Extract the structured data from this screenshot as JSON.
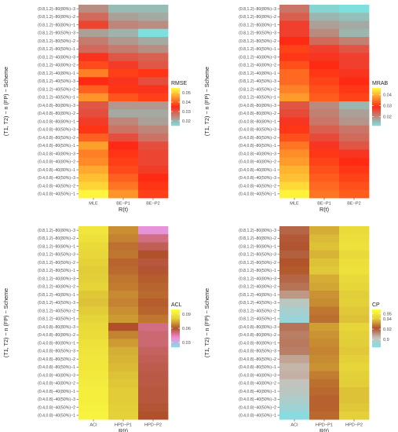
{
  "rows": [
    "(0.8,1.2)−80(80%)−3",
    "(0.8,1.2)−80(80%)−2",
    "(0.8,1.2)−80(80%)−1",
    "(0.8,1.2)−80(50%)−3",
    "(0.8,1.2)−80(50%)−2",
    "(0.8,1.2)−80(50%)−1",
    "(0.8,1.2)−40(80%)−3",
    "(0.8,1.2)−40(80%)−2",
    "(0.8,1.2)−40(80%)−1",
    "(0.8,1.2)−40(50%)−3",
    "(0.8,1.2)−40(50%)−2",
    "(0.8,1.2)−40(50%)−1",
    "(0.4,0.8)−80(80%)−3",
    "(0.4,0.8)−80(80%)−2",
    "(0.4,0.8)−80(80%)−1",
    "(0.4,0.8)−80(50%)−3",
    "(0.4,0.8)−80(50%)−2",
    "(0.4,0.8)−80(50%)−1",
    "(0.4,0.8)−40(80%)−3",
    "(0.4,0.8)−40(80%)−2",
    "(0.4,0.8)−40(80%)−1",
    "(0.4,0.8)−40(50%)−3",
    "(0.4,0.8)−40(50%)−2",
    "(0.4,0.8)−40(50%)−1"
  ],
  "chart_data": [
    {
      "type": "heatmap",
      "xlabel": "R(t)",
      "ylabel": "(T1, T2) − n (FP) − Scheme",
      "categories": [
        "MLE",
        "BE−P1",
        "BE−P2"
      ],
      "legend_title": "RMSE",
      "legend_ticks": [
        0.05,
        0.04,
        0.03,
        0.02
      ],
      "scale": {
        "min": 0.015,
        "max": 0.055,
        "colors": [
          "#7de0de",
          "#ff2a14",
          "#ffff40"
        ]
      },
      "values": [
        [
          0.024,
          0.019,
          0.019
        ],
        [
          0.028,
          0.022,
          0.021
        ],
        [
          0.032,
          0.025,
          0.024
        ],
        [
          0.022,
          0.02,
          0.015
        ],
        [
          0.026,
          0.023,
          0.021
        ],
        [
          0.028,
          0.026,
          0.024
        ],
        [
          0.034,
          0.03,
          0.029
        ],
        [
          0.038,
          0.033,
          0.03
        ],
        [
          0.043,
          0.037,
          0.036
        ],
        [
          0.035,
          0.034,
          0.031
        ],
        [
          0.04,
          0.036,
          0.034
        ],
        [
          0.045,
          0.039,
          0.037
        ],
        [
          0.03,
          0.023,
          0.023
        ],
        [
          0.031,
          0.021,
          0.021
        ],
        [
          0.033,
          0.025,
          0.022
        ],
        [
          0.036,
          0.027,
          0.025
        ],
        [
          0.04,
          0.031,
          0.027
        ],
        [
          0.046,
          0.035,
          0.031
        ],
        [
          0.043,
          0.036,
          0.032
        ],
        [
          0.044,
          0.037,
          0.032
        ],
        [
          0.047,
          0.038,
          0.033
        ],
        [
          0.049,
          0.04,
          0.035
        ],
        [
          0.051,
          0.042,
          0.036
        ],
        [
          0.054,
          0.045,
          0.037
        ]
      ]
    },
    {
      "type": "heatmap",
      "xlabel": "R(t)",
      "ylabel": "(T1, T2) − n (FP) − Scheme",
      "categories": [
        "MLE",
        "BE−P1",
        "BE−P2"
      ],
      "legend_title": "MRAB",
      "legend_ticks": [
        0.04,
        0.03,
        0.02
      ],
      "scale": {
        "min": 0.012,
        "max": 0.046,
        "colors": [
          "#7de0de",
          "#ff2a14",
          "#ffff40"
        ]
      },
      "values": [
        [
          0.022,
          0.013,
          0.012
        ],
        [
          0.024,
          0.016,
          0.015
        ],
        [
          0.027,
          0.018,
          0.017
        ],
        [
          0.027,
          0.02,
          0.016
        ],
        [
          0.029,
          0.023,
          0.021
        ],
        [
          0.031,
          0.027,
          0.025
        ],
        [
          0.03,
          0.028,
          0.027
        ],
        [
          0.032,
          0.029,
          0.027
        ],
        [
          0.034,
          0.03,
          0.028
        ],
        [
          0.034,
          0.031,
          0.029
        ],
        [
          0.036,
          0.032,
          0.03
        ],
        [
          0.038,
          0.033,
          0.031
        ],
        [
          0.025,
          0.02,
          0.016
        ],
        [
          0.026,
          0.021,
          0.018
        ],
        [
          0.028,
          0.022,
          0.019
        ],
        [
          0.03,
          0.024,
          0.022
        ],
        [
          0.032,
          0.026,
          0.023
        ],
        [
          0.035,
          0.028,
          0.025
        ],
        [
          0.037,
          0.03,
          0.028
        ],
        [
          0.038,
          0.031,
          0.029
        ],
        [
          0.04,
          0.032,
          0.03
        ],
        [
          0.041,
          0.033,
          0.031
        ],
        [
          0.043,
          0.034,
          0.032
        ],
        [
          0.045,
          0.035,
          0.033
        ]
      ]
    },
    {
      "type": "heatmap",
      "xlabel": "R(t)",
      "ylabel": "(T1, T2) − n (FP) − Scheme",
      "categories": [
        "ACI",
        "HPD−P1",
        "HPD−P2"
      ],
      "legend_title": "ACL",
      "legend_ticks": [
        0.09,
        0.06,
        0.03
      ],
      "scale": {
        "min": 0.02,
        "max": 0.1,
        "colors": [
          "#7ee0e8",
          "#f38ad8",
          "#b0512c",
          "#e2cd38",
          "#ffff40"
        ]
      },
      "values": [
        [
          0.09,
          0.07,
          0.038
        ],
        [
          0.088,
          0.068,
          0.05
        ],
        [
          0.085,
          0.065,
          0.055
        ],
        [
          0.084,
          0.066,
          0.06
        ],
        [
          0.082,
          0.063,
          0.058
        ],
        [
          0.08,
          0.064,
          0.059
        ],
        [
          0.081,
          0.066,
          0.062
        ],
        [
          0.083,
          0.067,
          0.063
        ],
        [
          0.079,
          0.069,
          0.064
        ],
        [
          0.078,
          0.068,
          0.062
        ],
        [
          0.08,
          0.07,
          0.063
        ],
        [
          0.083,
          0.072,
          0.066
        ],
        [
          0.085,
          0.06,
          0.05
        ],
        [
          0.086,
          0.068,
          0.052
        ],
        [
          0.088,
          0.072,
          0.052
        ],
        [
          0.089,
          0.075,
          0.054
        ],
        [
          0.09,
          0.076,
          0.055
        ],
        [
          0.09,
          0.077,
          0.056
        ],
        [
          0.091,
          0.078,
          0.057
        ],
        [
          0.092,
          0.079,
          0.057
        ],
        [
          0.093,
          0.08,
          0.058
        ],
        [
          0.093,
          0.08,
          0.058
        ],
        [
          0.094,
          0.081,
          0.059
        ],
        [
          0.095,
          0.082,
          0.06
        ]
      ]
    },
    {
      "type": "heatmap",
      "xlabel": "R(t)",
      "ylabel": "(T1, T2) − n (FP) − Scheme",
      "categories": [
        "ACI",
        "HPD−P1",
        "HPD−P2"
      ],
      "legend_title": "CP",
      "legend_ticks": [
        0.95,
        0.94,
        0.92,
        0.9
      ],
      "scale": {
        "min": 0.885,
        "max": 0.958,
        "colors": [
          "#7ee0e8",
          "#c7c1b9",
          "#b0512c",
          "#e2cd38",
          "#ffff40"
        ]
      },
      "values": [
        [
          0.918,
          0.935,
          0.945
        ],
        [
          0.92,
          0.937,
          0.946
        ],
        [
          0.921,
          0.938,
          0.947
        ],
        [
          0.919,
          0.936,
          0.944
        ],
        [
          0.922,
          0.938,
          0.946
        ],
        [
          0.923,
          0.939,
          0.947
        ],
        [
          0.918,
          0.935,
          0.944
        ],
        [
          0.916,
          0.934,
          0.943
        ],
        [
          0.91,
          0.931,
          0.94
        ],
        [
          0.9,
          0.93,
          0.941
        ],
        [
          0.895,
          0.927,
          0.939
        ],
        [
          0.892,
          0.926,
          0.938
        ],
        [
          0.916,
          0.933,
          0.943
        ],
        [
          0.914,
          0.931,
          0.941
        ],
        [
          0.915,
          0.93,
          0.94
        ],
        [
          0.914,
          0.929,
          0.939
        ],
        [
          0.908,
          0.93,
          0.941
        ],
        [
          0.905,
          0.931,
          0.943
        ],
        [
          0.906,
          0.928,
          0.941
        ],
        [
          0.902,
          0.926,
          0.94
        ],
        [
          0.9,
          0.925,
          0.938
        ],
        [
          0.897,
          0.924,
          0.938
        ],
        [
          0.893,
          0.924,
          0.939
        ],
        [
          0.888,
          0.925,
          0.941
        ]
      ]
    }
  ]
}
